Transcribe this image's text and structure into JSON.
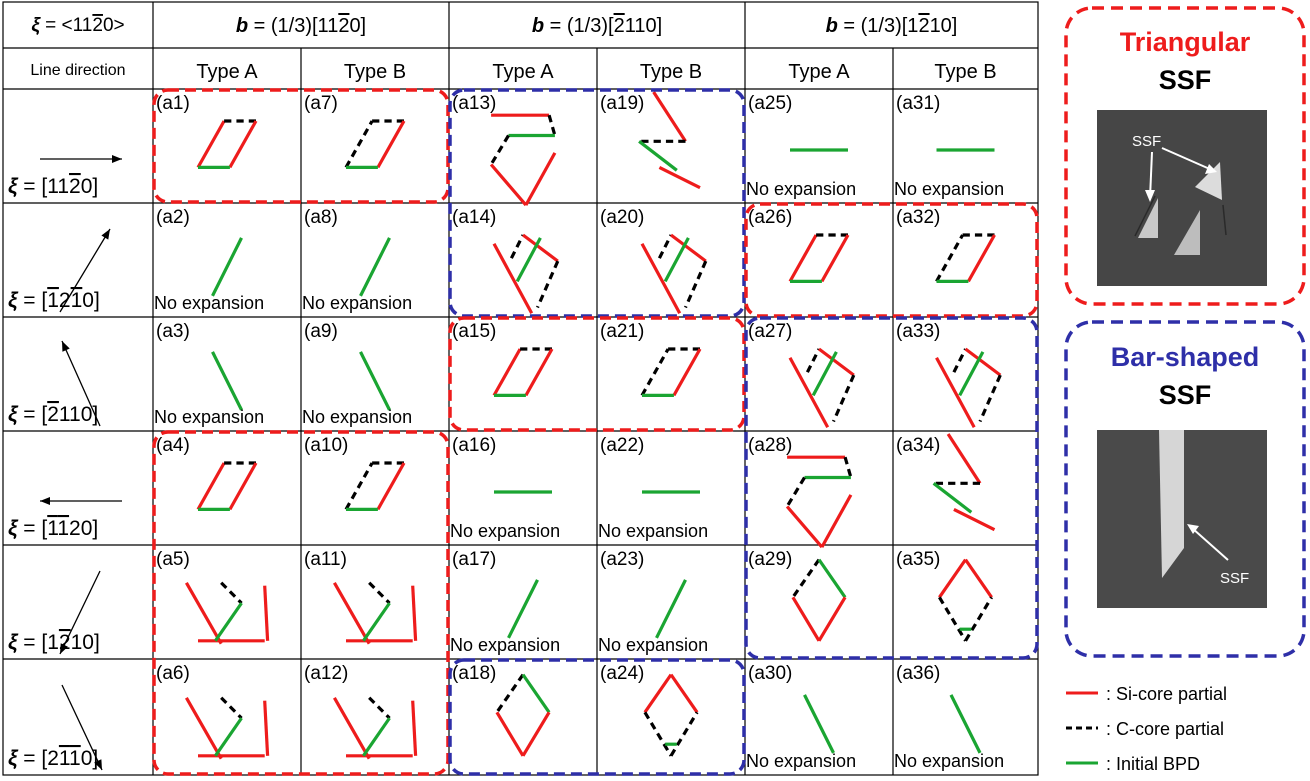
{
  "header": {
    "xi_label": "ξ = <11",
    "xi_over": "2",
    "xi_tail": "0>",
    "line_direction": "Line direction",
    "burgers": [
      {
        "pre": "b",
        "mid": " = (1/3)[11",
        "over": "2",
        "post": "0]"
      },
      {
        "pre": "b",
        "mid": " = (1/3)[",
        "over": "2",
        "post": "110]"
      },
      {
        "pre": "b",
        "mid": " = (1/3)[1",
        "over": "2",
        "post": "10]"
      }
    ],
    "types": [
      "Type A",
      "Type B",
      "Type A",
      "Type B",
      "Type A",
      "Type B"
    ]
  },
  "rows": [
    {
      "xi_parts": [
        "ξ",
        " = [11",
        "2",
        "0]"
      ],
      "arrow": "right"
    },
    {
      "xi_parts": [
        "ξ",
        " = [",
        "1",
        "2",
        "1",
        "0]"
      ],
      "arrow": "up-right"
    },
    {
      "xi_parts": [
        "ξ",
        " = [",
        "2",
        "110]"
      ],
      "arrow": "up-left"
    },
    {
      "xi_parts": [
        "ξ",
        " = [",
        "1",
        "1",
        "20]"
      ],
      "arrow": "left"
    },
    {
      "xi_parts": [
        "ξ",
        " = [1",
        "2",
        "10]"
      ],
      "arrow": "down-left"
    },
    {
      "xi_parts": [
        "ξ",
        " = [2",
        "1",
        "1",
        "0]"
      ],
      "arrow": "down-right"
    }
  ],
  "cells": [
    [
      "(a1)",
      "(a7)",
      "(a13)",
      "(a19)",
      "(a25)",
      "(a31)"
    ],
    [
      "(a2)",
      "(a8)",
      "(a14)",
      "(a20)",
      "(a26)",
      "(a32)"
    ],
    [
      "(a3)",
      "(a9)",
      "(a15)",
      "(a21)",
      "(a27)",
      "(a33)"
    ],
    [
      "(a4)",
      "(a10)",
      "(a16)",
      "(a22)",
      "(a28)",
      "(a34)"
    ],
    [
      "(a5)",
      "(a11)",
      "(a17)",
      "(a23)",
      "(a29)",
      "(a35)"
    ],
    [
      "(a6)",
      "(a12)",
      "(a18)",
      "(a24)",
      "(a30)",
      "(a36)"
    ]
  ],
  "no_expansion": "No expansion",
  "side": {
    "triangular": {
      "title1": "Triangular",
      "title2": "SSF",
      "tag": "SSF"
    },
    "bar": {
      "title1": "Bar-shaped",
      "title2": "SSF",
      "tag": "SSF"
    }
  },
  "legend": [
    {
      "label": ": Si-core partial",
      "color": "#ee1c1c",
      "style": "solid"
    },
    {
      "label": ": C-core partial",
      "color": "#000000",
      "style": "dashed"
    },
    {
      "label": ": Initial BPD",
      "color": "#1aa532",
      "style": "solid"
    }
  ],
  "colors": {
    "red": "#ee1c1c",
    "blue": "#2e2fa8",
    "green": "#1aa532",
    "black": "#000000"
  }
}
